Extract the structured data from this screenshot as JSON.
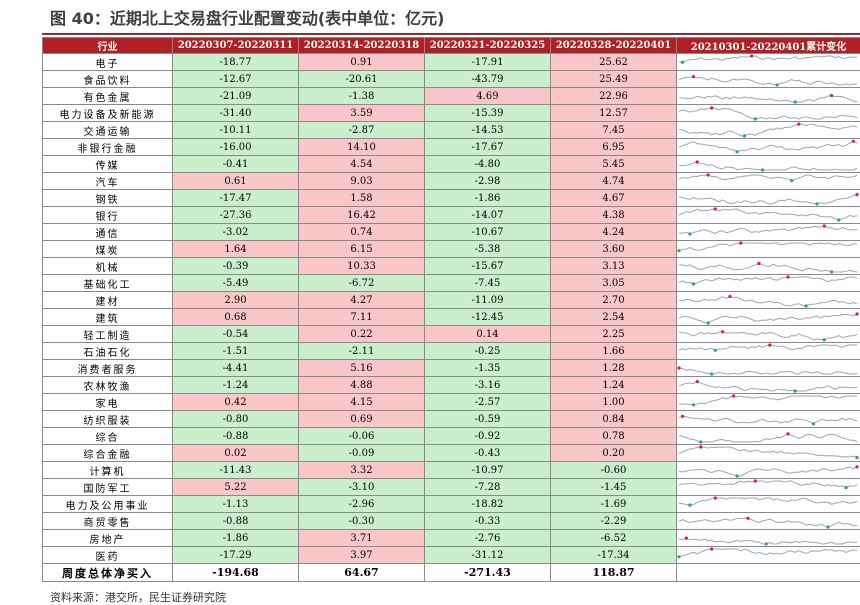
{
  "title": "图 40：近期北上交易盘行业配置变动(表中单位：亿元)",
  "columns": [
    "行业",
    "20220307-20220311",
    "20220314-20220318",
    "20220321-20220325",
    "20220328-20220401",
    "20210301-20220401累计变化"
  ],
  "rows": [
    {
      "name": "电子",
      "v": [
        "-18.77",
        "0.91",
        "-17.91",
        "25.62"
      ]
    },
    {
      "name": "食品饮料",
      "v": [
        "-12.67",
        "-20.61",
        "-43.79",
        "25.49"
      ]
    },
    {
      "name": "有色金属",
      "v": [
        "-21.09",
        "-1.38",
        "4.69",
        "22.96"
      ]
    },
    {
      "name": "电力设备及新能源",
      "v": [
        "-31.40",
        "3.59",
        "-15.39",
        "12.57"
      ]
    },
    {
      "name": "交通运输",
      "v": [
        "-10.11",
        "-2.87",
        "-14.53",
        "7.45"
      ]
    },
    {
      "name": "非银行金融",
      "v": [
        "-16.00",
        "14.10",
        "-17.67",
        "6.95"
      ]
    },
    {
      "name": "传媒",
      "v": [
        "-0.41",
        "4.54",
        "-4.80",
        "5.45"
      ]
    },
    {
      "name": "汽车",
      "v": [
        "0.61",
        "9.03",
        "-2.98",
        "4.74"
      ]
    },
    {
      "name": "钢铁",
      "v": [
        "-17.47",
        "1.58",
        "-1.86",
        "4.67"
      ]
    },
    {
      "name": "银行",
      "v": [
        "-27.36",
        "16.42",
        "-14.07",
        "4.38"
      ]
    },
    {
      "name": "通信",
      "v": [
        "-3.02",
        "0.74",
        "-10.67",
        "4.24"
      ]
    },
    {
      "name": "煤炭",
      "v": [
        "1.64",
        "6.15",
        "-5.38",
        "3.60"
      ]
    },
    {
      "name": "机械",
      "v": [
        "-0.39",
        "10.33",
        "-15.67",
        "3.13"
      ]
    },
    {
      "name": "基础化工",
      "v": [
        "-5.49",
        "-6.72",
        "-7.45",
        "3.05"
      ]
    },
    {
      "name": "建材",
      "v": [
        "2.90",
        "4.27",
        "-11.09",
        "2.70"
      ]
    },
    {
      "name": "建筑",
      "v": [
        "0.68",
        "7.11",
        "-12.45",
        "2.54"
      ]
    },
    {
      "name": "轻工制造",
      "v": [
        "-0.54",
        "0.22",
        "0.14",
        "2.25"
      ]
    },
    {
      "name": "石油石化",
      "v": [
        "-1.51",
        "-2.11",
        "-0.25",
        "1.66"
      ]
    },
    {
      "name": "消费者服务",
      "v": [
        "-4.41",
        "5.16",
        "-1.35",
        "1.28"
      ]
    },
    {
      "name": "农林牧渔",
      "v": [
        "-1.24",
        "4.88",
        "-3.16",
        "1.24"
      ]
    },
    {
      "name": "家电",
      "v": [
        "0.42",
        "4.15",
        "-2.57",
        "1.00"
      ]
    },
    {
      "name": "纺织服装",
      "v": [
        "-0.80",
        "0.69",
        "-0.59",
        "0.84"
      ]
    },
    {
      "name": "综合",
      "v": [
        "-0.88",
        "-0.06",
        "-0.92",
        "0.78"
      ]
    },
    {
      "name": "综合金融",
      "v": [
        "0.02",
        "-0.09",
        "-0.43",
        "0.20"
      ]
    },
    {
      "name": "计算机",
      "v": [
        "-11.43",
        "3.32",
        "-10.97",
        "-0.60"
      ]
    },
    {
      "name": "国防军工",
      "v": [
        "5.22",
        "-3.10",
        "-7.28",
        "-1.45"
      ]
    },
    {
      "name": "电力及公用事业",
      "v": [
        "-1.13",
        "-2.96",
        "-18.82",
        "-1.69"
      ]
    },
    {
      "name": "商贸零售",
      "v": [
        "-0.88",
        "-0.30",
        "-0.33",
        "-2.29"
      ]
    },
    {
      "name": "房地产",
      "v": [
        "-1.86",
        "3.71",
        "-2.76",
        "-6.52"
      ]
    },
    {
      "name": "医药",
      "v": [
        "-17.29",
        "3.97",
        "-31.12",
        "-17.34"
      ]
    }
  ],
  "total": {
    "name": "周度总体净买入",
    "v": [
      "-194.68",
      "64.67",
      "-271.43",
      "118.87"
    ]
  },
  "source": "资料来源：港交所，民生证券研究院",
  "colors": {
    "header": "#b01f24",
    "positive": "#f9c7c9",
    "negative": "#c9efcc",
    "spark_line": "#9aa6b8",
    "spark_max": "#e02020",
    "spark_min": "#2ea84f"
  }
}
